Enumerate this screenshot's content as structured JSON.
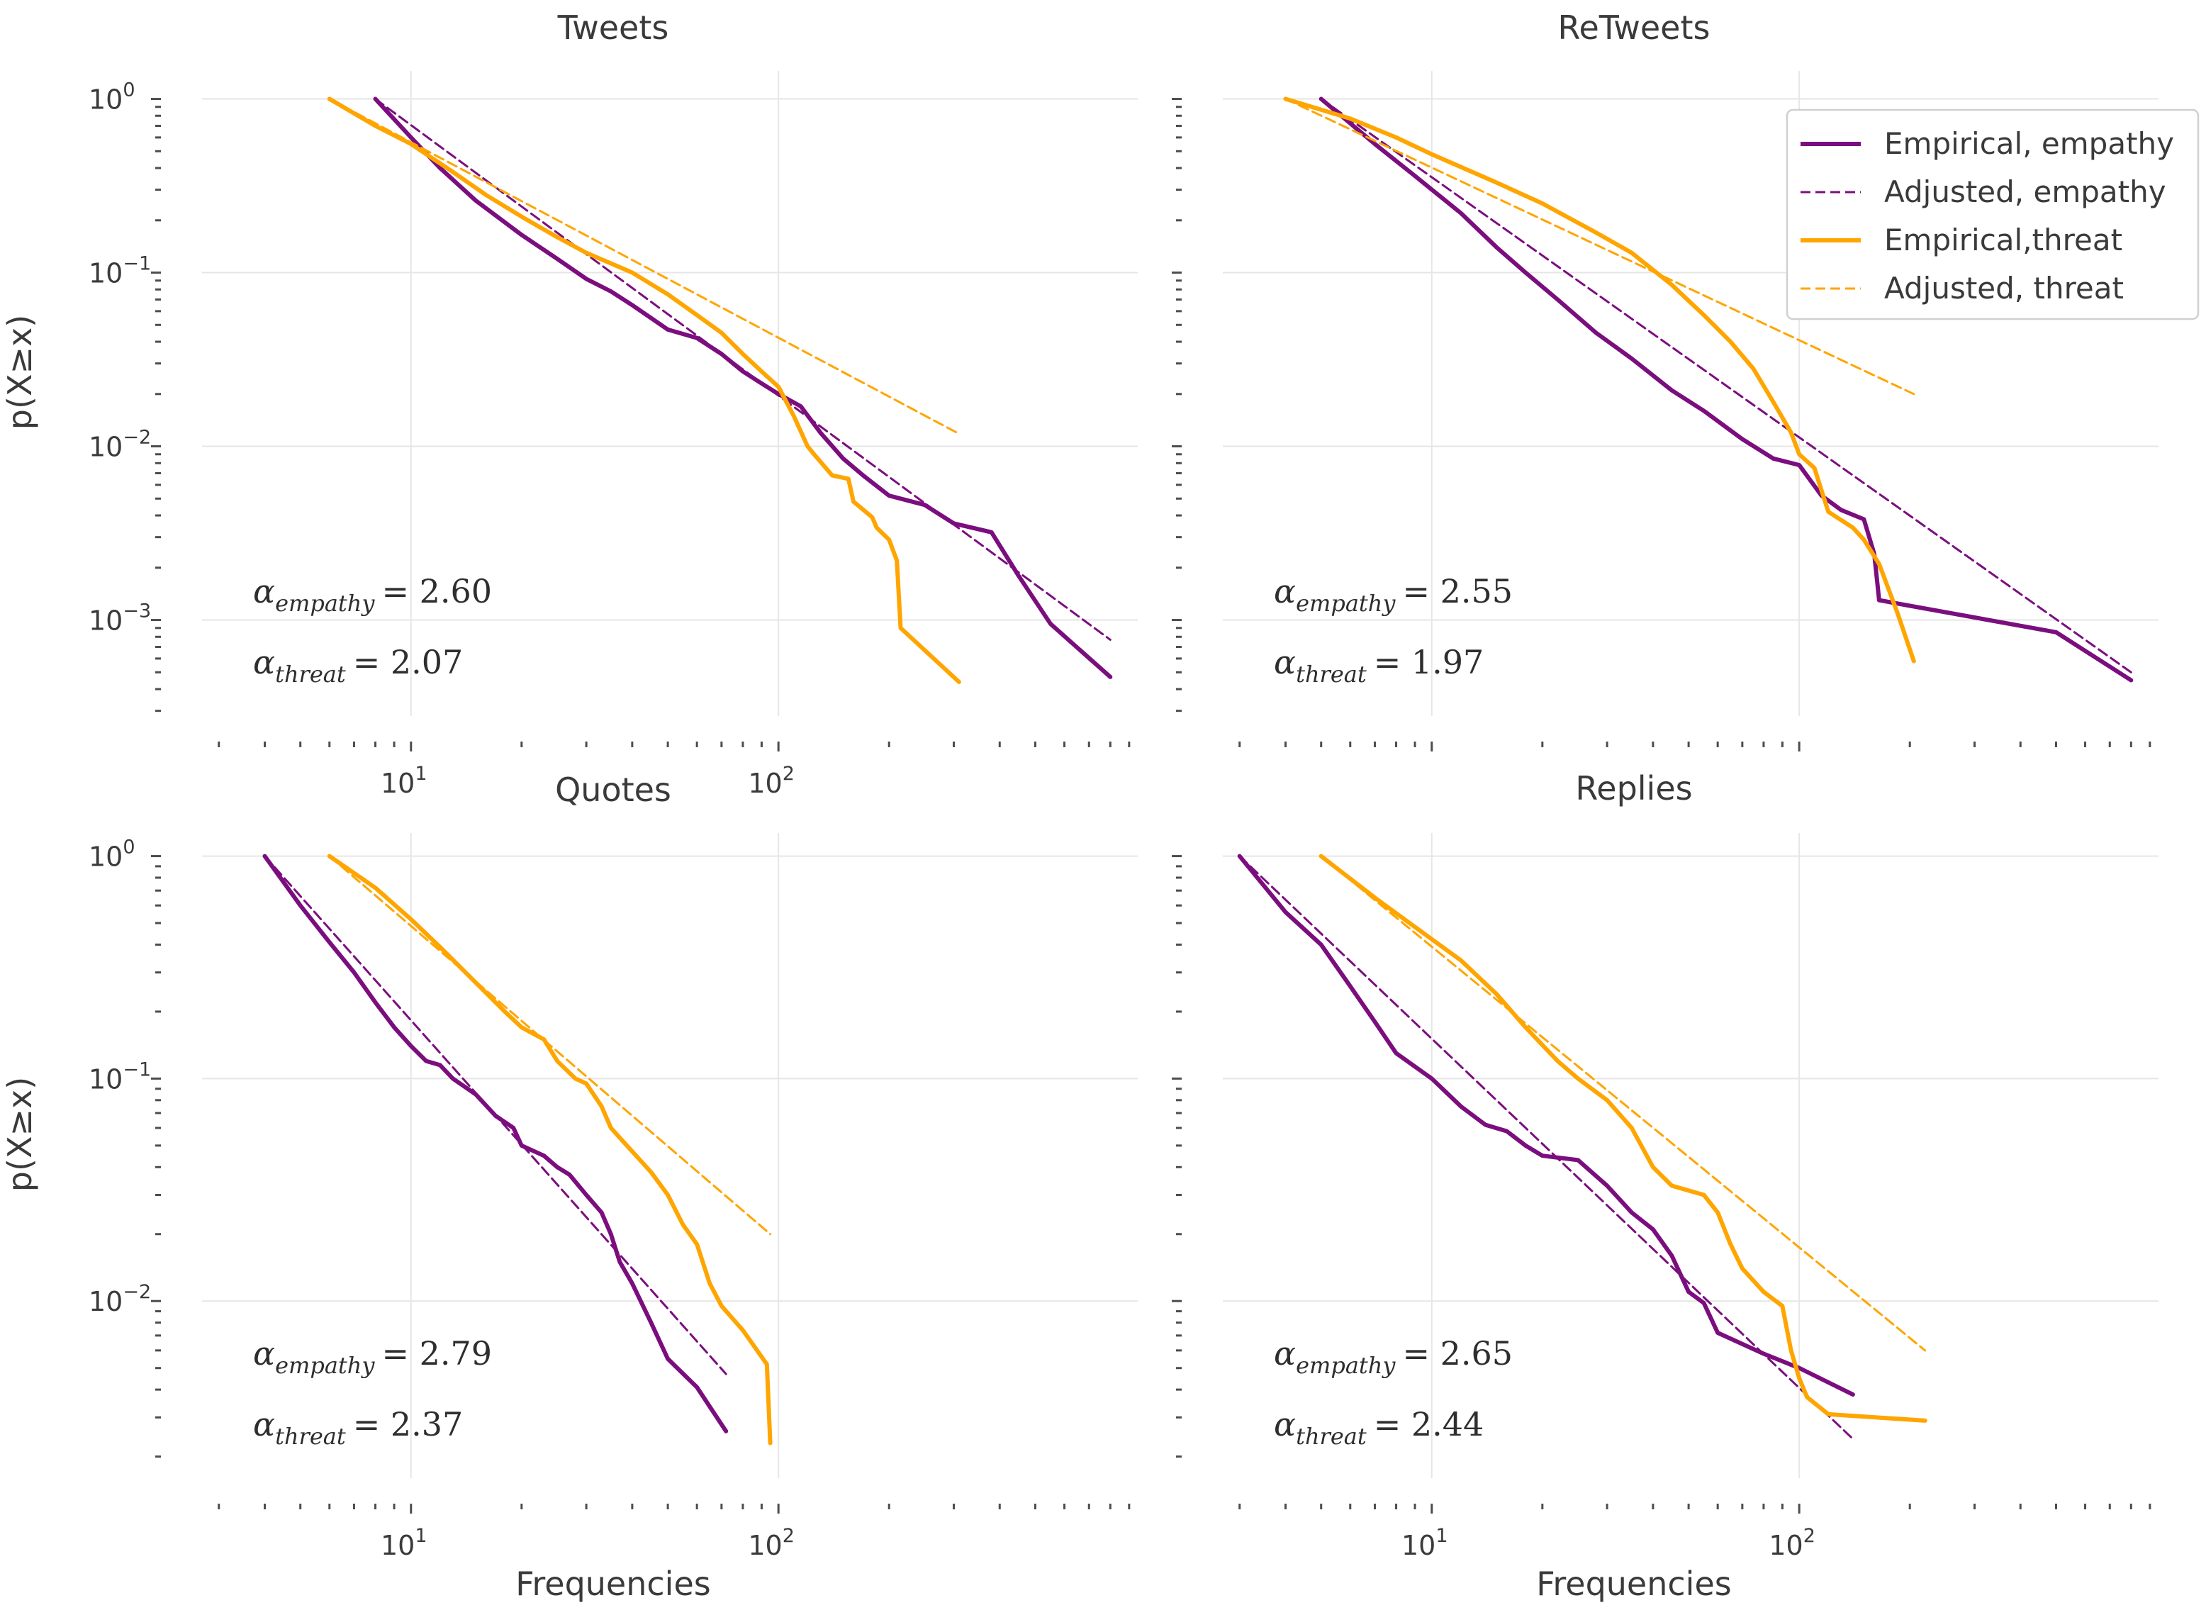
{
  "colors": {
    "empathy": "#7b0e7e",
    "threat": "#ffa500"
  },
  "chart_data": [
    {
      "type": "line",
      "title": "Tweets",
      "xlabel": "",
      "ylabel": "p(X≥x)",
      "xscale": "log",
      "yscale": "log",
      "xlim": [
        2.7,
        950
      ],
      "ylim": [
        0.00028,
        1.45
      ],
      "xticks": [
        {
          "base": "10",
          "exp": "1",
          "value": 10
        },
        {
          "base": "10",
          "exp": "2",
          "value": 100
        }
      ],
      "yticks": [
        {
          "base": "10",
          "exp": "0",
          "value": 1
        },
        {
          "base": "10",
          "exp": "−1",
          "value": 0.1
        },
        {
          "base": "10",
          "exp": "−2",
          "value": 0.01
        },
        {
          "base": "10",
          "exp": "−3",
          "value": 0.001
        }
      ],
      "show_ylabel": true,
      "show_xlabel": false,
      "annotations": [
        {
          "param": "empathy",
          "value": "= 2.60"
        },
        {
          "param": "threat",
          "value": "= 2.07"
        }
      ],
      "series": [
        {
          "name": "Empirical, empathy",
          "color": "empathy",
          "dash": "solid",
          "x": [
            8,
            10,
            12,
            15,
            20,
            25,
            30,
            35,
            40,
            50,
            60,
            70,
            80,
            90,
            100,
            115,
            130,
            150,
            170,
            200,
            250,
            300,
            380,
            450,
            550,
            800
          ],
          "y": [
            1.0,
            0.6,
            0.4,
            0.26,
            0.165,
            0.12,
            0.092,
            0.078,
            0.065,
            0.047,
            0.042,
            0.034,
            0.027,
            0.023,
            0.02,
            0.017,
            0.012,
            0.0085,
            0.0068,
            0.0052,
            0.0046,
            0.0036,
            0.0032,
            0.0018,
            0.00095,
            0.00047
          ]
        },
        {
          "name": "Adjusted, empathy",
          "color": "empathy",
          "dash": "dashed",
          "x": [
            8,
            800
          ],
          "y": [
            1.0,
            0.00077
          ]
        },
        {
          "name": "Empirical,threat",
          "color": "threat",
          "dash": "solid",
          "x": [
            6,
            8,
            10,
            13,
            16,
            20,
            25,
            30,
            40,
            50,
            60,
            70,
            80,
            90,
            100,
            110,
            120,
            125,
            140,
            155,
            160,
            180,
            185,
            200,
            210,
            215,
            310
          ],
          "y": [
            1.0,
            0.7,
            0.55,
            0.38,
            0.28,
            0.21,
            0.16,
            0.13,
            0.1,
            0.075,
            0.057,
            0.045,
            0.034,
            0.027,
            0.022,
            0.015,
            0.01,
            0.009,
            0.0068,
            0.0065,
            0.0048,
            0.0039,
            0.0034,
            0.0029,
            0.0022,
            0.0009,
            0.00044
          ]
        },
        {
          "name": "Adjusted, threat",
          "color": "threat",
          "dash": "dashed",
          "x": [
            6,
            310
          ],
          "y": [
            1.0,
            0.0118
          ]
        }
      ]
    },
    {
      "type": "line",
      "title": "ReTweets",
      "xlabel": "",
      "ylabel": "",
      "xscale": "log",
      "yscale": "log",
      "xlim": [
        2.7,
        950
      ],
      "ylim": [
        0.00028,
        1.45
      ],
      "xticks": [],
      "yticks": [],
      "show_ylabel": false,
      "show_xlabel": false,
      "annotations": [
        {
          "param": "empathy",
          "value": "= 2.55"
        },
        {
          "param": "threat",
          "value": "= 1.97"
        }
      ],
      "series": [
        {
          "name": "Empirical, empathy",
          "color": "empathy",
          "dash": "solid",
          "x": [
            5,
            7,
            9,
            12,
            15,
            18,
            22,
            28,
            35,
            45,
            55,
            70,
            85,
            100,
            115,
            130,
            150,
            160,
            165,
            500,
            800
          ],
          "y": [
            1.0,
            0.55,
            0.36,
            0.22,
            0.14,
            0.1,
            0.07,
            0.045,
            0.032,
            0.021,
            0.016,
            0.011,
            0.0085,
            0.0078,
            0.0052,
            0.0043,
            0.0038,
            0.0024,
            0.0013,
            0.00085,
            0.00045
          ]
        },
        {
          "name": "Adjusted, empathy",
          "color": "empathy",
          "dash": "dashed",
          "x": [
            5,
            800
          ],
          "y": [
            1.0,
            0.0005
          ]
        },
        {
          "name": "Empirical,threat",
          "color": "threat",
          "dash": "solid",
          "x": [
            4,
            6,
            8,
            10,
            15,
            20,
            28,
            35,
            45,
            55,
            65,
            75,
            85,
            95,
            100,
            110,
            120,
            140,
            150,
            165,
            185,
            205
          ],
          "y": [
            1.0,
            0.77,
            0.6,
            0.48,
            0.33,
            0.25,
            0.17,
            0.13,
            0.085,
            0.057,
            0.04,
            0.028,
            0.018,
            0.012,
            0.009,
            0.0075,
            0.0042,
            0.0034,
            0.0029,
            0.0021,
            0.0011,
            0.00058
          ]
        },
        {
          "name": "Adjusted, threat",
          "color": "threat",
          "dash": "dashed",
          "x": [
            4,
            205
          ],
          "y": [
            1.0,
            0.02
          ]
        }
      ]
    },
    {
      "type": "line",
      "title": "Quotes",
      "xlabel": "Frequencies",
      "ylabel": "p(X≥x)",
      "xscale": "log",
      "yscale": "log",
      "xlim": [
        2.7,
        950
      ],
      "ylim": [
        0.0016,
        1.27
      ],
      "xticks": [
        {
          "base": "10",
          "exp": "1",
          "value": 10
        },
        {
          "base": "10",
          "exp": "2",
          "value": 100
        }
      ],
      "yticks": [
        {
          "base": "10",
          "exp": "0",
          "value": 1
        },
        {
          "base": "10",
          "exp": "−1",
          "value": 0.1
        },
        {
          "base": "10",
          "exp": "−2",
          "value": 0.01
        }
      ],
      "show_ylabel": true,
      "show_xlabel": true,
      "annotations": [
        {
          "param": "empathy",
          "value": "= 2.79"
        },
        {
          "param": "threat",
          "value": "= 2.37"
        }
      ],
      "series": [
        {
          "name": "Empirical, empathy",
          "color": "empathy",
          "dash": "solid",
          "x": [
            4,
            5,
            6,
            7,
            8,
            9,
            10,
            11,
            12,
            13,
            15,
            17,
            19,
            20,
            23,
            25,
            27,
            30,
            33,
            35,
            37,
            40,
            45,
            50,
            60,
            72
          ],
          "y": [
            1.0,
            0.6,
            0.41,
            0.3,
            0.22,
            0.17,
            0.14,
            0.12,
            0.115,
            0.1,
            0.085,
            0.068,
            0.06,
            0.05,
            0.045,
            0.04,
            0.037,
            0.03,
            0.025,
            0.02,
            0.015,
            0.012,
            0.008,
            0.0055,
            0.0041,
            0.0026
          ]
        },
        {
          "name": "Adjusted, empathy",
          "color": "empathy",
          "dash": "dashed",
          "x": [
            4,
            72
          ],
          "y": [
            1.0,
            0.0047
          ]
        },
        {
          "name": "Empirical,threat",
          "color": "threat",
          "dash": "solid",
          "x": [
            6,
            8,
            10,
            12,
            15,
            18,
            20,
            23,
            25,
            28,
            30,
            33,
            35,
            40,
            45,
            50,
            55,
            60,
            65,
            70,
            80,
            93,
            95
          ],
          "y": [
            1.0,
            0.72,
            0.52,
            0.39,
            0.27,
            0.2,
            0.17,
            0.15,
            0.12,
            0.1,
            0.095,
            0.075,
            0.06,
            0.047,
            0.038,
            0.03,
            0.022,
            0.018,
            0.012,
            0.0095,
            0.0074,
            0.0052,
            0.0023
          ]
        },
        {
          "name": "Adjusted, threat",
          "color": "threat",
          "dash": "dashed",
          "x": [
            6,
            95
          ],
          "y": [
            1.0,
            0.02
          ]
        }
      ]
    },
    {
      "type": "line",
      "title": "Replies",
      "xlabel": "Frequencies",
      "ylabel": "",
      "xscale": "log",
      "yscale": "log",
      "xlim": [
        2.7,
        950
      ],
      "ylim": [
        0.0016,
        1.27
      ],
      "xticks": [
        {
          "base": "10",
          "exp": "1",
          "value": 10
        },
        {
          "base": "10",
          "exp": "2",
          "value": 100
        }
      ],
      "yticks": [],
      "show_ylabel": false,
      "show_xlabel": true,
      "annotations": [
        {
          "param": "empathy",
          "value": "= 2.65"
        },
        {
          "param": "threat",
          "value": "= 2.44"
        }
      ],
      "series": [
        {
          "name": "Empirical, empathy",
          "color": "empathy",
          "dash": "solid",
          "x": [
            3,
            4,
            5,
            6,
            7,
            8,
            10,
            12,
            14,
            16,
            18,
            20,
            25,
            30,
            35,
            40,
            45,
            50,
            55,
            60,
            80,
            100,
            140
          ],
          "y": [
            1.0,
            0.56,
            0.4,
            0.26,
            0.18,
            0.13,
            0.1,
            0.075,
            0.062,
            0.058,
            0.05,
            0.045,
            0.043,
            0.033,
            0.025,
            0.021,
            0.016,
            0.011,
            0.0098,
            0.0072,
            0.0058,
            0.005,
            0.0038
          ]
        },
        {
          "name": "Adjusted, empathy",
          "color": "empathy",
          "dash": "dashed",
          "x": [
            3,
            140
          ],
          "y": [
            1.0,
            0.0024
          ]
        },
        {
          "name": "Empirical,threat",
          "color": "threat",
          "dash": "solid",
          "x": [
            5,
            7,
            9,
            12,
            15,
            18,
            22,
            25,
            30,
            35,
            40,
            45,
            55,
            60,
            65,
            70,
            80,
            90,
            95,
            100,
            105,
            120,
            220
          ],
          "y": [
            1.0,
            0.65,
            0.48,
            0.34,
            0.24,
            0.17,
            0.12,
            0.1,
            0.08,
            0.06,
            0.04,
            0.033,
            0.03,
            0.025,
            0.018,
            0.014,
            0.011,
            0.0095,
            0.006,
            0.0045,
            0.0037,
            0.0031,
            0.0029
          ]
        },
        {
          "name": "Adjusted, threat",
          "color": "threat",
          "dash": "dashed",
          "x": [
            5,
            220
          ],
          "y": [
            1.0,
            0.006
          ]
        }
      ]
    }
  ],
  "legend": {
    "location": "upper right of ReTweets panel",
    "entries": [
      {
        "label": "Empirical, empathy",
        "color": "empathy",
        "dash": "solid"
      },
      {
        "label": "Adjusted, empathy",
        "color": "empathy",
        "dash": "dashed"
      },
      {
        "label": "Empirical,threat",
        "color": "threat",
        "dash": "solid"
      },
      {
        "label": "Adjusted, threat",
        "color": "threat",
        "dash": "dashed"
      }
    ]
  }
}
